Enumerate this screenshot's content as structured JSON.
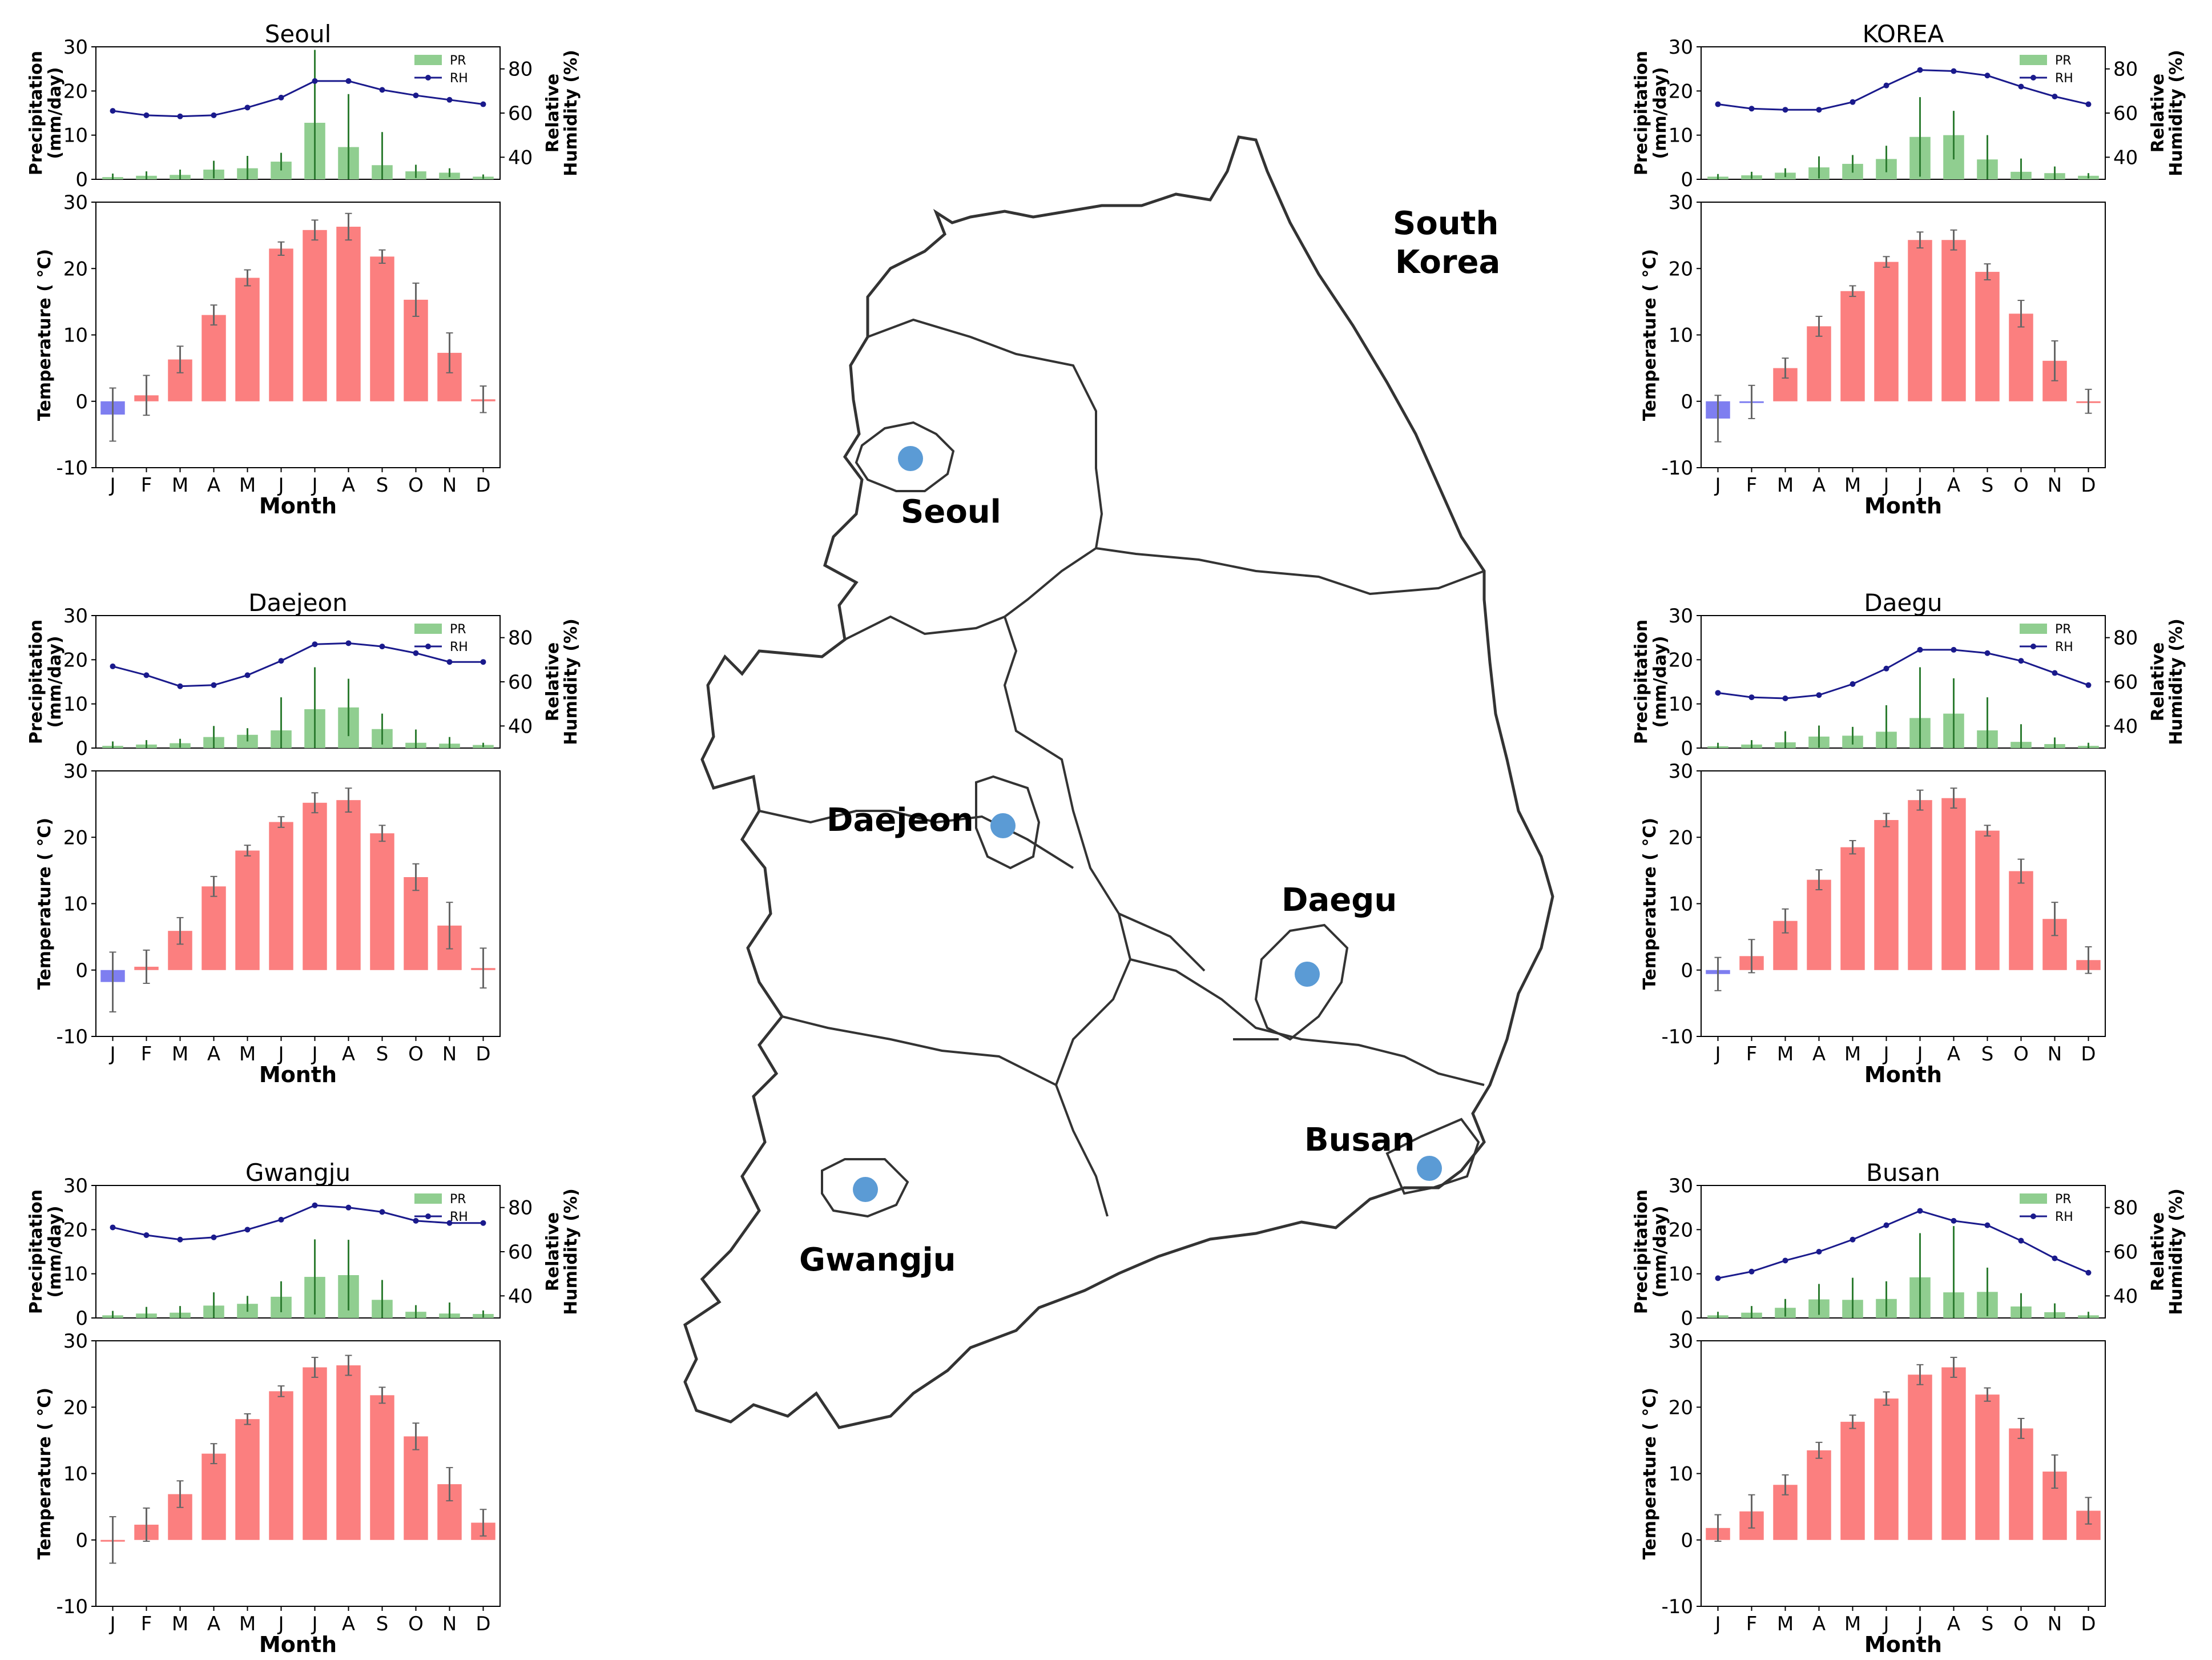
{
  "months": [
    "J",
    "F",
    "M",
    "A",
    "M",
    "J",
    "J",
    "A",
    "S",
    "O",
    "N",
    "D"
  ],
  "axes": {
    "precip_label_1": "Precipitation",
    "precip_label_2": "(mm/day)",
    "rh_label_1": "Relative",
    "rh_label_2": "Humidity (%)",
    "temp_label": "Temperature ( °C)",
    "xlabel": "Month",
    "precip_ticks": [
      "0",
      "10",
      "20",
      "30"
    ],
    "rh_ticks": [
      "40",
      "60",
      "80"
    ],
    "temp_ticks": [
      "-10",
      "0",
      "10",
      "20",
      "30"
    ]
  },
  "legend": {
    "pr": "PR",
    "rh": "RH"
  },
  "colors": {
    "precip": "#90ce90",
    "precip_err": "#2e7d32",
    "rh": "#1a1a8c",
    "temp_warm": "#fb7f7f",
    "temp_cold": "#7e7ef0",
    "temp_err": "#666666",
    "marker": "#5b9bd5"
  },
  "map": {
    "country_line1": "South",
    "country_line2": "Korea",
    "cities": [
      "Seoul",
      "Daejeon",
      "Daegu",
      "Busan",
      "Gwangju"
    ]
  },
  "chart_data": [
    {
      "type": "bar",
      "title": "Seoul",
      "position": "left-top",
      "precip": [
        0.5,
        0.8,
        1.0,
        2.2,
        2.5,
        4.0,
        12.8,
        7.3,
        3.2,
        1.8,
        1.5,
        0.6
      ],
      "precip_err": [
        0.8,
        1.0,
        1.2,
        2.0,
        2.8,
        2.0,
        16.5,
        12.0,
        7.5,
        1.5,
        1.0,
        0.5
      ],
      "rh": [
        61,
        59,
        58.5,
        59,
        62.5,
        67,
        74.5,
        74.5,
        70.5,
        68,
        66,
        64
      ],
      "temp": [
        -2.0,
        0.9,
        6.3,
        13.0,
        18.6,
        23.0,
        25.8,
        26.3,
        21.8,
        15.3,
        7.3,
        0.3
      ],
      "temp_err": [
        4.0,
        3.0,
        2.0,
        1.5,
        1.2,
        1.0,
        1.5,
        2.0,
        1.0,
        2.5,
        3.0,
        2.0
      ],
      "xlabel": "Month",
      "ylim_precip": [
        0,
        30
      ],
      "ylim_rh": [
        30,
        90
      ],
      "ylim_temp": [
        -10,
        30
      ]
    },
    {
      "type": "bar",
      "title": "Daejeon",
      "position": "left-mid",
      "precip": [
        0.5,
        0.8,
        1.1,
        2.5,
        3.0,
        4.0,
        8.8,
        9.2,
        4.3,
        1.2,
        1.0,
        0.7
      ],
      "precip_err": [
        1.0,
        1.0,
        1.0,
        2.5,
        1.5,
        7.5,
        9.5,
        6.5,
        3.5,
        3.0,
        1.5,
        0.5
      ],
      "rh": [
        67,
        63,
        58,
        58.5,
        63,
        69.5,
        77,
        77.5,
        76,
        73,
        69,
        69
      ],
      "temp": [
        -1.8,
        0.5,
        5.9,
        12.6,
        18.0,
        22.3,
        25.2,
        25.6,
        20.6,
        14.0,
        6.7,
        0.3
      ],
      "temp_err": [
        4.5,
        2.5,
        2.0,
        1.5,
        0.8,
        0.8,
        1.5,
        1.8,
        1.2,
        2.0,
        3.5,
        3.0
      ],
      "xlabel": "Month",
      "ylim_precip": [
        0,
        30
      ],
      "ylim_rh": [
        30,
        90
      ],
      "ylim_temp": [
        -10,
        30
      ]
    },
    {
      "type": "bar",
      "title": "Gwangju",
      "position": "left-bottom",
      "precip": [
        0.6,
        1.0,
        1.2,
        2.8,
        3.2,
        4.8,
        9.3,
        9.7,
        4.1,
        1.4,
        1.0,
        0.9
      ],
      "precip_err": [
        1.0,
        1.5,
        1.5,
        3.0,
        1.8,
        3.5,
        8.5,
        8.0,
        4.5,
        1.5,
        2.5,
        0.8
      ],
      "rh": [
        71,
        67.5,
        65.5,
        66.5,
        70,
        74.5,
        81,
        80,
        78,
        74,
        73,
        73
      ],
      "temp": [
        0.0,
        2.3,
        6.9,
        13.0,
        18.2,
        22.4,
        26.0,
        26.3,
        21.8,
        15.6,
        8.4,
        2.6
      ],
      "temp_err": [
        3.5,
        2.5,
        2.0,
        1.5,
        0.8,
        0.8,
        1.5,
        1.5,
        1.2,
        2.0,
        2.5,
        2.0
      ],
      "xlabel": "Month",
      "ylim_precip": [
        0,
        30
      ],
      "ylim_rh": [
        30,
        90
      ],
      "ylim_temp": [
        -10,
        30
      ]
    },
    {
      "type": "bar",
      "title": "KOREA",
      "position": "right-top",
      "precip": [
        0.6,
        0.9,
        1.5,
        2.7,
        3.5,
        4.6,
        9.6,
        10.0,
        4.5,
        1.7,
        1.4,
        0.8
      ],
      "precip_err": [
        0.6,
        0.8,
        1.0,
        2.5,
        2.0,
        3.0,
        9.0,
        5.5,
        5.5,
        3.0,
        1.5,
        0.6
      ],
      "rh": [
        64,
        62,
        61.5,
        61.5,
        65,
        72.5,
        79.5,
        79,
        77,
        72,
        67.5,
        64
      ],
      "temp": [
        -2.6,
        -0.1,
        5.0,
        11.3,
        16.6,
        21.0,
        24.3,
        24.3,
        19.5,
        13.2,
        6.1,
        0.0
      ],
      "temp_err": [
        3.5,
        2.5,
        1.5,
        1.5,
        0.8,
        0.8,
        1.2,
        1.5,
        1.2,
        2.0,
        3.0,
        1.8
      ],
      "xlabel": "Month",
      "ylim_precip": [
        0,
        30
      ],
      "ylim_rh": [
        30,
        90
      ],
      "ylim_temp": [
        -10,
        30
      ]
    },
    {
      "type": "bar",
      "title": "Daegu",
      "position": "right-mid",
      "precip": [
        0.4,
        0.8,
        1.3,
        2.6,
        2.8,
        3.7,
        6.8,
        7.8,
        4.0,
        1.4,
        0.9,
        0.5
      ],
      "precip_err": [
        0.8,
        1.0,
        2.5,
        2.5,
        2.0,
        6.0,
        11.5,
        8.0,
        7.5,
        4.0,
        1.5,
        0.7
      ],
      "rh": [
        55,
        53,
        52.5,
        54,
        59,
        66,
        74.5,
        74.5,
        73,
        69.5,
        64,
        58.5
      ],
      "temp": [
        -0.6,
        2.1,
        7.4,
        13.6,
        18.5,
        22.6,
        25.6,
        25.9,
        21.0,
        14.9,
        7.7,
        1.5
      ],
      "temp_err": [
        2.5,
        2.5,
        1.8,
        1.5,
        1.0,
        1.0,
        1.5,
        1.5,
        0.8,
        1.8,
        2.5,
        2.0
      ],
      "xlabel": "Month",
      "ylim_precip": [
        0,
        30
      ],
      "ylim_rh": [
        30,
        90
      ],
      "ylim_temp": [
        -10,
        30
      ]
    },
    {
      "type": "bar",
      "title": "Busan",
      "position": "right-bottom",
      "precip": [
        0.6,
        1.2,
        2.3,
        4.2,
        4.1,
        4.3,
        9.2,
        5.8,
        5.9,
        2.6,
        1.3,
        0.6
      ],
      "precip_err": [
        0.8,
        1.5,
        2.0,
        3.5,
        5.0,
        4.0,
        10.0,
        15.0,
        5.5,
        3.0,
        2.0,
        0.8
      ],
      "rh": [
        48,
        51,
        56,
        60,
        65.5,
        72,
        78.5,
        74,
        72,
        65,
        57,
        50.5
      ],
      "temp": [
        1.8,
        4.3,
        8.3,
        13.5,
        17.8,
        21.3,
        24.9,
        26.0,
        21.9,
        16.8,
        10.3,
        4.4
      ],
      "temp_err": [
        2.0,
        2.5,
        1.5,
        1.2,
        1.0,
        1.0,
        1.5,
        1.5,
        1.0,
        1.5,
        2.5,
        2.0
      ],
      "xlabel": "Month",
      "ylim_precip": [
        0,
        30
      ],
      "ylim_rh": [
        30,
        90
      ],
      "ylim_temp": [
        -10,
        30
      ]
    }
  ]
}
